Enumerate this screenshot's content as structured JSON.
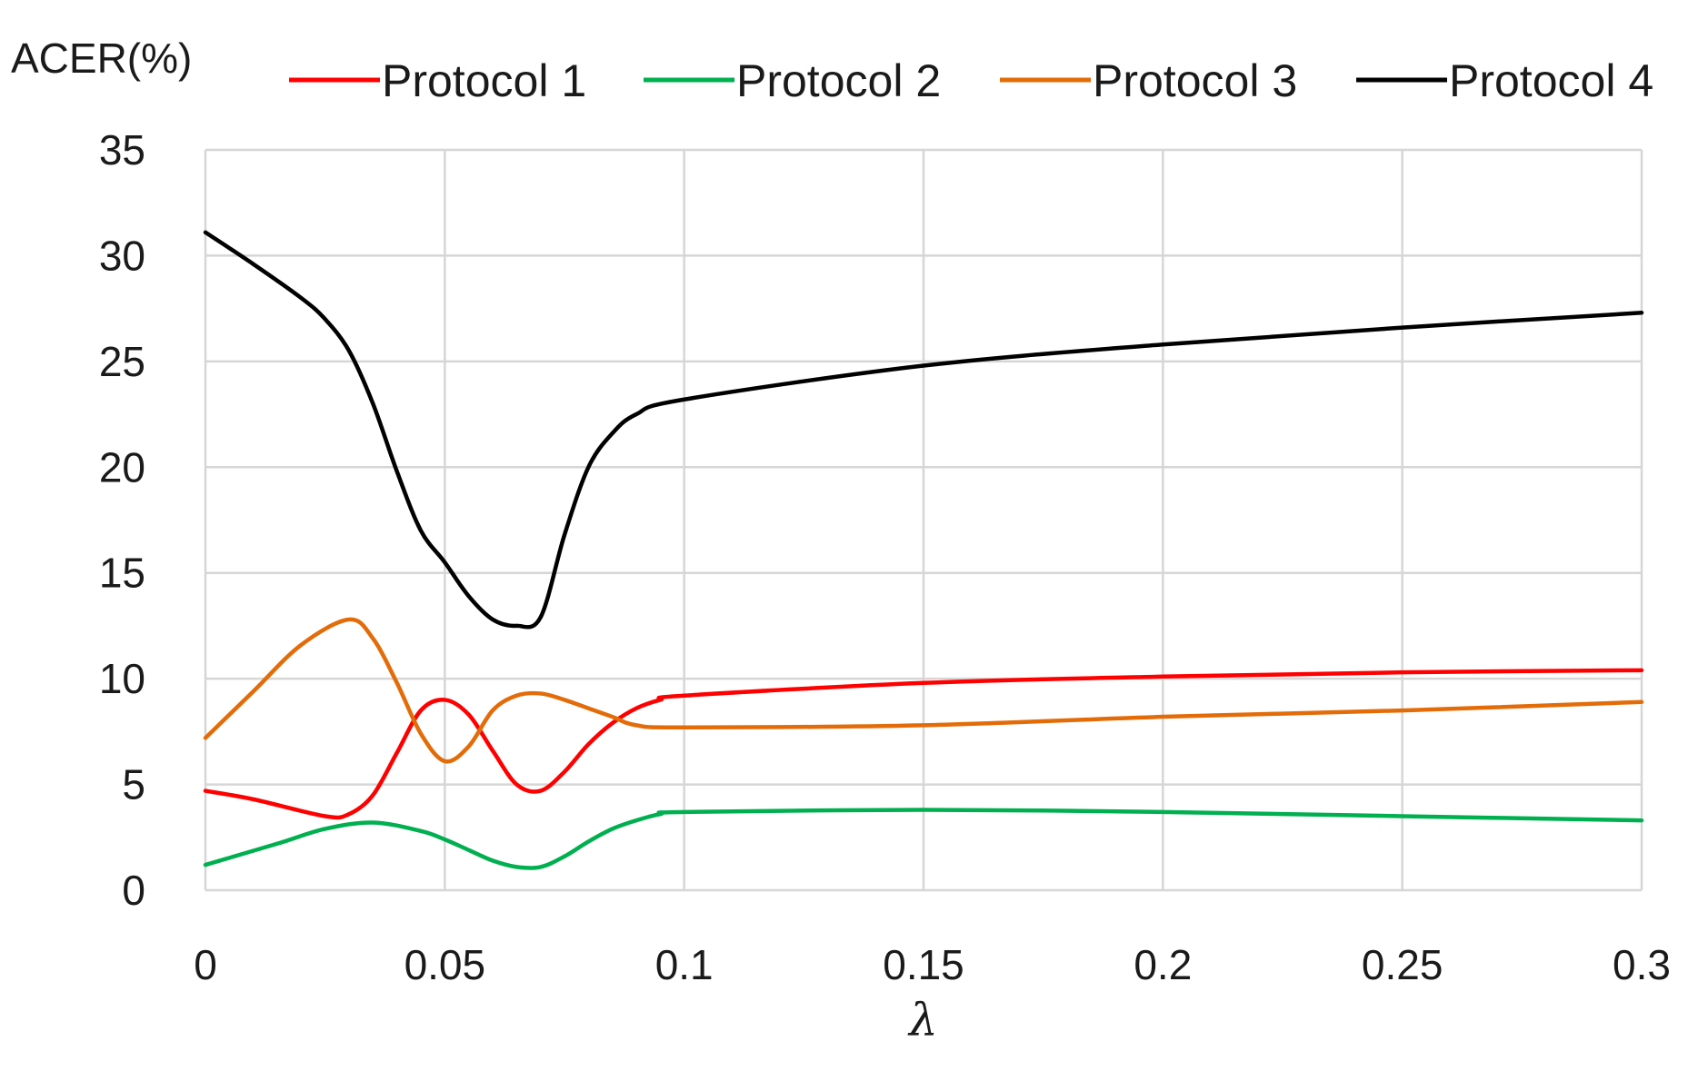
{
  "chart_data": {
    "type": "line",
    "title": "",
    "xlabel": "λ",
    "ylabel": "ACER(%)",
    "xlim": [
      0,
      0.3
    ],
    "ylim": [
      0,
      35
    ],
    "x_ticks": [
      0,
      0.05,
      0.1,
      0.15,
      0.2,
      0.25,
      0.3
    ],
    "x_tick_labels": [
      "0",
      "0.05",
      "0.1",
      "0.15",
      "0.2",
      "0.25",
      "0.3"
    ],
    "y_ticks": [
      0,
      5,
      10,
      15,
      20,
      25,
      30,
      35
    ],
    "y_tick_labels": [
      "0",
      "5",
      "10",
      "15",
      "20",
      "25",
      "30",
      "35"
    ],
    "grid": true,
    "legend_position": "top",
    "series": [
      {
        "name": "Protocol 1",
        "color": "#ff0000",
        "x": [
          0,
          0.01,
          0.025,
          0.03,
          0.035,
          0.04,
          0.045,
          0.05,
          0.055,
          0.06,
          0.065,
          0.07,
          0.075,
          0.08,
          0.085,
          0.09,
          0.095,
          0.1,
          0.15,
          0.2,
          0.25,
          0.3
        ],
        "y": [
          4.7,
          4.3,
          3.5,
          3.6,
          4.5,
          6.5,
          8.5,
          9.0,
          8.3,
          6.6,
          5.0,
          4.7,
          5.6,
          6.9,
          7.9,
          8.6,
          9.0,
          9.2,
          9.8,
          10.1,
          10.3,
          10.4
        ]
      },
      {
        "name": "Protocol 2",
        "color": "#00b050",
        "x": [
          0,
          0.015,
          0.025,
          0.035,
          0.045,
          0.05,
          0.055,
          0.06,
          0.065,
          0.07,
          0.075,
          0.08,
          0.085,
          0.09,
          0.095,
          0.1,
          0.15,
          0.2,
          0.25,
          0.3
        ],
        "y": [
          1.2,
          2.2,
          2.9,
          3.2,
          2.8,
          2.4,
          1.9,
          1.4,
          1.1,
          1.1,
          1.6,
          2.3,
          2.9,
          3.3,
          3.6,
          3.7,
          3.8,
          3.7,
          3.5,
          3.3
        ]
      },
      {
        "name": "Protocol 3",
        "color": "#e36c09",
        "x": [
          0,
          0.01,
          0.02,
          0.03,
          0.035,
          0.04,
          0.045,
          0.05,
          0.055,
          0.06,
          0.065,
          0.07,
          0.075,
          0.08,
          0.085,
          0.09,
          0.1,
          0.15,
          0.2,
          0.25,
          0.3
        ],
        "y": [
          7.2,
          9.4,
          11.6,
          12.8,
          11.9,
          9.8,
          7.4,
          6.1,
          6.8,
          8.5,
          9.2,
          9.3,
          9.0,
          8.6,
          8.2,
          7.8,
          7.7,
          7.8,
          8.2,
          8.5,
          8.9
        ]
      },
      {
        "name": "Protocol 4",
        "color": "#000000",
        "x": [
          0,
          0.01,
          0.02,
          0.025,
          0.03,
          0.035,
          0.04,
          0.045,
          0.05,
          0.055,
          0.06,
          0.065,
          0.07,
          0.075,
          0.08,
          0.085,
          0.09,
          0.1,
          0.15,
          0.2,
          0.25,
          0.3
        ],
        "y": [
          31.1,
          29.6,
          28.0,
          27.0,
          25.5,
          23.0,
          19.8,
          17.0,
          15.5,
          13.9,
          12.8,
          12.5,
          12.9,
          16.8,
          20.0,
          21.6,
          22.5,
          23.2,
          24.8,
          25.8,
          26.6,
          27.3
        ]
      }
    ]
  }
}
